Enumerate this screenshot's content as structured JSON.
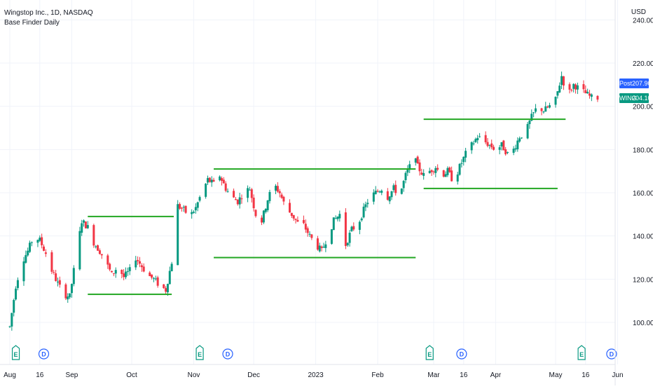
{
  "header": {
    "symbol_line": "Wingstop Inc., 1D, NASDAQ",
    "indicator": "Base Finder Daily",
    "currency": "USD"
  },
  "price_tags": {
    "post": {
      "label": "Post",
      "value": "207.90"
    },
    "symbol": {
      "label": "WING",
      "value": "204.10"
    }
  },
  "colors": {
    "up": "#089981",
    "down": "#f23645",
    "base_line": "#22a722",
    "grid": "#f0f3fa",
    "axis_text": "#131722",
    "post_tag": "#2962ff",
    "symbol_tag": "#089981",
    "event_earnings": "#089981",
    "event_dividend": "#2962ff"
  },
  "chart_data": {
    "type": "candlestick",
    "ylim": [
      93,
      245
    ],
    "y_ticks": [
      "240.00",
      "220.00",
      "200.00",
      "180.00",
      "160.00",
      "140.00",
      "120.00",
      "100.00"
    ],
    "x_ticks": [
      {
        "label": "Aug",
        "day": 0
      },
      {
        "label": "16",
        "day": 15
      },
      {
        "label": "Sep",
        "day": 31
      },
      {
        "label": "Oct",
        "day": 61
      },
      {
        "label": "Nov",
        "day": 92
      },
      {
        "label": "Dec",
        "day": 122
      },
      {
        "label": "2023",
        "day": 153
      },
      {
        "label": "Feb",
        "day": 184
      },
      {
        "label": "Mar",
        "day": 212
      },
      {
        "label": "16",
        "day": 227
      },
      {
        "label": "Apr",
        "day": 243
      },
      {
        "label": "May",
        "day": 273
      },
      {
        "label": "16",
        "day": 288
      },
      {
        "label": "Jun",
        "day": 304
      }
    ],
    "path_points": [
      [
        0,
        98
      ],
      [
        3,
        117
      ],
      [
        6,
        128
      ],
      [
        9,
        133
      ],
      [
        12,
        140
      ],
      [
        15,
        138
      ],
      [
        18,
        132
      ],
      [
        21,
        124
      ],
      [
        24,
        118
      ],
      [
        27,
        113
      ],
      [
        30,
        112
      ],
      [
        33,
        130
      ],
      [
        36,
        147
      ],
      [
        39,
        144
      ],
      [
        42,
        137
      ],
      [
        45,
        133
      ],
      [
        48,
        128
      ],
      [
        51,
        122
      ],
      [
        54,
        126
      ],
      [
        57,
        121
      ],
      [
        60,
        124
      ],
      [
        63,
        130
      ],
      [
        66,
        126
      ],
      [
        69,
        122
      ],
      [
        72,
        120
      ],
      [
        75,
        117
      ],
      [
        78,
        115
      ],
      [
        81,
        128
      ],
      [
        84,
        154
      ],
      [
        87,
        152
      ],
      [
        90,
        149
      ],
      [
        93,
        153
      ],
      [
        96,
        160
      ],
      [
        99,
        166
      ],
      [
        102,
        164
      ],
      [
        105,
        168
      ],
      [
        108,
        162
      ],
      [
        111,
        158
      ],
      [
        114,
        156
      ],
      [
        117,
        160
      ],
      [
        120,
        162
      ],
      [
        123,
        150
      ],
      [
        126,
        147
      ],
      [
        129,
        157
      ],
      [
        132,
        164
      ],
      [
        135,
        160
      ],
      [
        138,
        153
      ],
      [
        141,
        150
      ],
      [
        144,
        146
      ],
      [
        147,
        145
      ],
      [
        150,
        140
      ],
      [
        153,
        136
      ],
      [
        156,
        133
      ],
      [
        159,
        140
      ],
      [
        162,
        147
      ],
      [
        165,
        150
      ],
      [
        168,
        136
      ],
      [
        171,
        143
      ],
      [
        174,
        145
      ],
      [
        177,
        152
      ],
      [
        180,
        158
      ],
      [
        183,
        160
      ],
      [
        186,
        162
      ],
      [
        189,
        158
      ],
      [
        192,
        162
      ],
      [
        195,
        159
      ],
      [
        198,
        168
      ],
      [
        200,
        172
      ],
      [
        202,
        183
      ],
      [
        204,
        172
      ],
      [
        207,
        168
      ],
      [
        210,
        170
      ],
      [
        213,
        172
      ],
      [
        216,
        168
      ],
      [
        219,
        170
      ],
      [
        222,
        165
      ],
      [
        225,
        172
      ],
      [
        228,
        178
      ],
      [
        231,
        182
      ],
      [
        234,
        186
      ],
      [
        237,
        184
      ],
      [
        240,
        182
      ],
      [
        243,
        180
      ],
      [
        246,
        182
      ],
      [
        249,
        178
      ],
      [
        252,
        180
      ],
      [
        255,
        186
      ],
      [
        258,
        188
      ],
      [
        261,
        195
      ],
      [
        264,
        200
      ],
      [
        267,
        198
      ],
      [
        270,
        200
      ],
      [
        273,
        203
      ],
      [
        276,
        214
      ],
      [
        279,
        205
      ],
      [
        282,
        210
      ],
      [
        285,
        208
      ],
      [
        288,
        206
      ],
      [
        291,
        204
      ],
      [
        294,
        204
      ]
    ],
    "base_lines": [
      {
        "from_day": 39,
        "to_day": 82,
        "price": 149
      },
      {
        "from_day": 39,
        "to_day": 81,
        "price": 113
      },
      {
        "from_day": 102,
        "to_day": 203,
        "price": 171
      },
      {
        "from_day": 102,
        "to_day": 203,
        "price": 130
      },
      {
        "from_day": 207,
        "to_day": 278,
        "price": 194
      },
      {
        "from_day": 207,
        "to_day": 274,
        "price": 162
      }
    ],
    "events": [
      {
        "type": "E",
        "day": 3
      },
      {
        "type": "D",
        "day": 17
      },
      {
        "type": "E",
        "day": 95
      },
      {
        "type": "D",
        "day": 109
      },
      {
        "type": "E",
        "day": 210
      },
      {
        "type": "D",
        "day": 226
      },
      {
        "type": "E",
        "day": 286
      },
      {
        "type": "D",
        "day": 301
      }
    ]
  }
}
